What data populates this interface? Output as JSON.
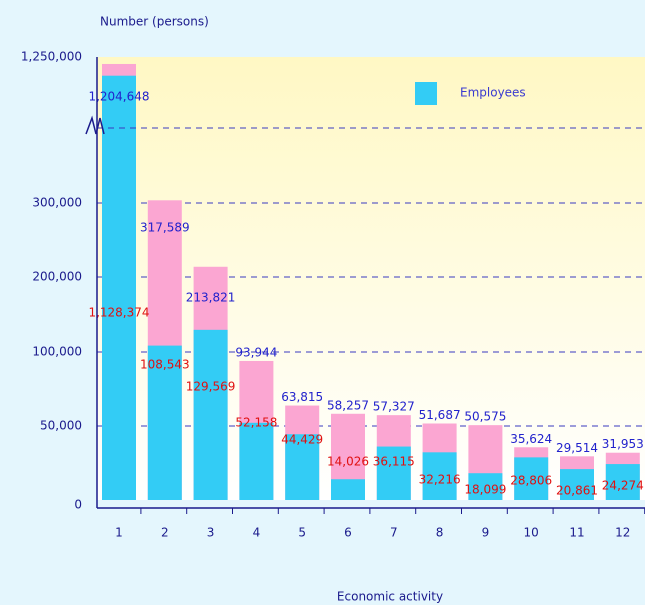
{
  "chart_data": {
    "type": "bar",
    "y_axis_label": "Number (persons)",
    "x_axis_label": "Economic activity",
    "categories": [
      "1",
      "2",
      "3",
      "4",
      "5",
      "6",
      "7",
      "8",
      "9",
      "10",
      "11",
      "12"
    ],
    "series": [
      {
        "color": "#fba6d2",
        "values": [
          1204648,
          317589,
          213821,
          93944,
          63815,
          58257,
          57327,
          51687,
          50575,
          35624,
          29514,
          31953
        ]
      },
      {
        "name": "Employees",
        "color": "#33ccf5",
        "values": [
          1128374,
          108543,
          129569,
          52158,
          44429,
          14026,
          36115,
          32216,
          18099,
          28806,
          20861,
          24274
        ]
      }
    ],
    "ylim": [
      0,
      1250000
    ],
    "yticks": [
      0,
      {
        "value": 50000,
        "label": "50,000"
      },
      {
        "value": 100000,
        "label": "100,000"
      },
      {
        "value": 200000,
        "label": "200,000"
      },
      {
        "value": 300000,
        "label": "300,000"
      },
      {
        "value": 1250000,
        "label": "1,250,000"
      }
    ],
    "value_labels": [
      [
        "1,204,648",
        "317,589",
        "213,821",
        "93,944",
        "63,815",
        "58,257",
        "57,327",
        "51,687",
        "50,575",
        "35,624",
        "29,514",
        "31,953"
      ],
      [
        "1,128,374",
        "108,543",
        "129,569",
        "52,158",
        "44,429",
        "14,026",
        "36,115",
        "32,216",
        "18,099",
        "28,806",
        "20,861",
        "24,274"
      ]
    ],
    "grid": true
  }
}
